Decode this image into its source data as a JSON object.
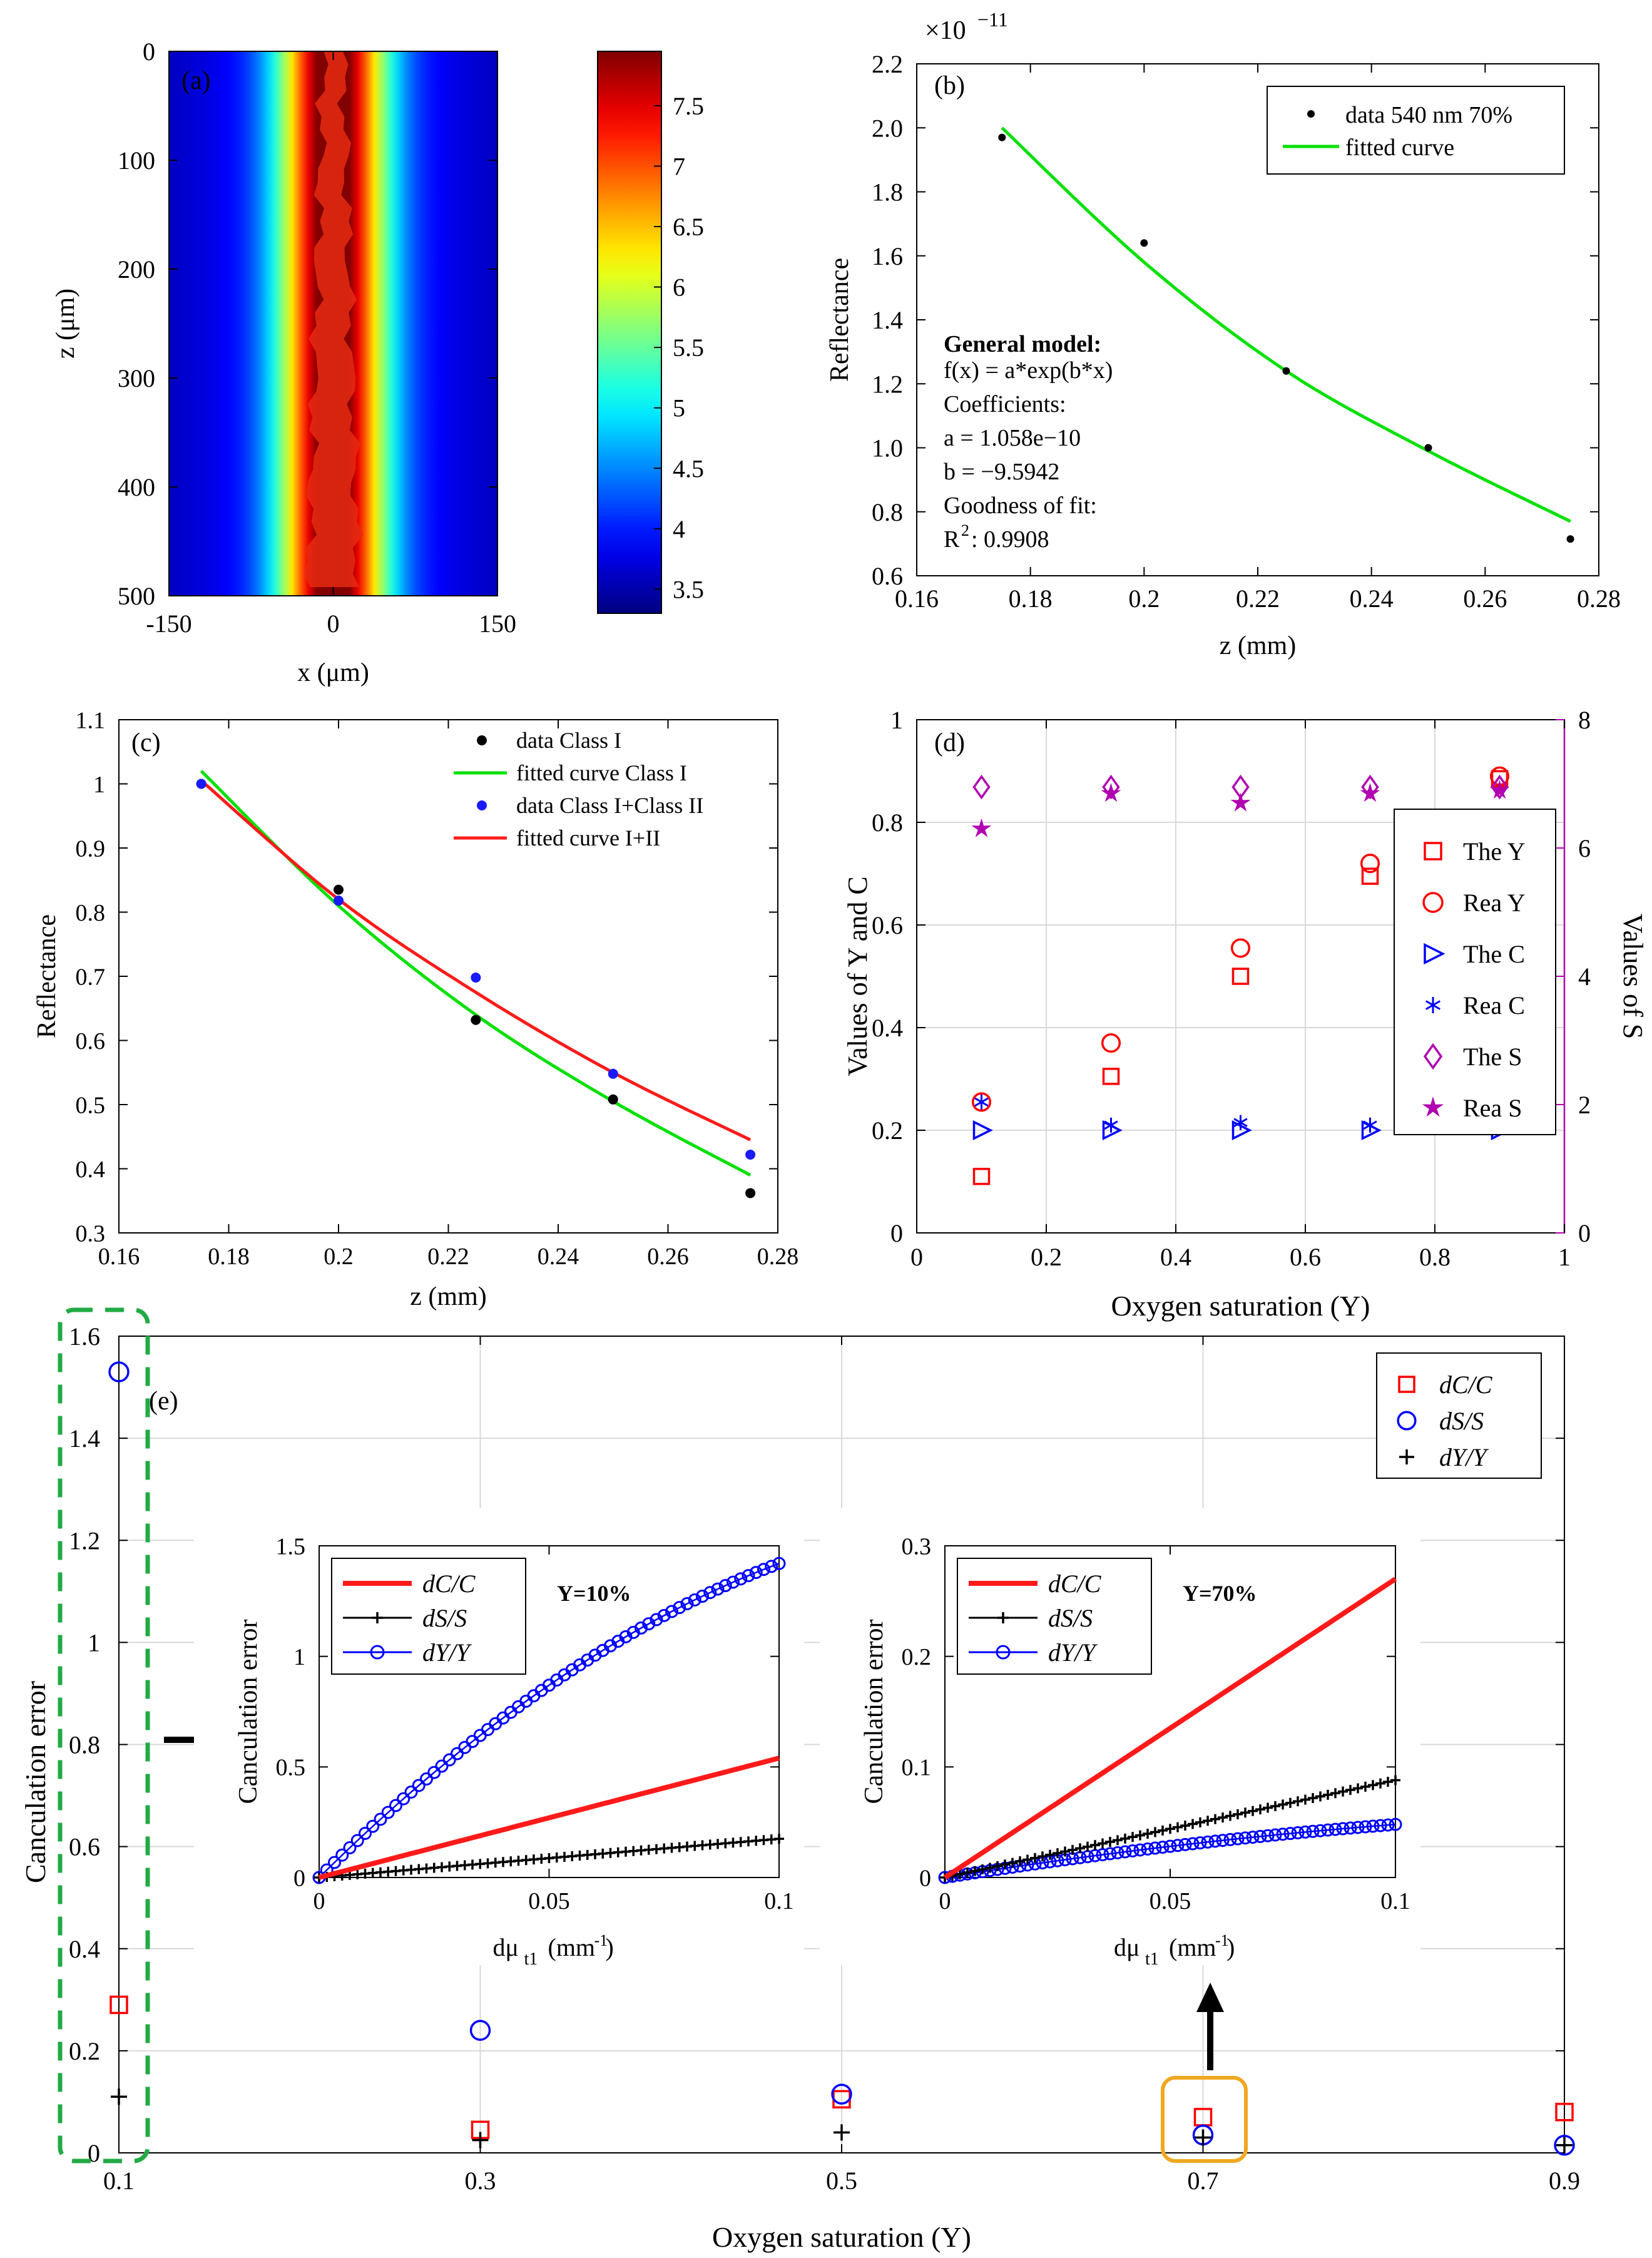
{
  "chart_data": [
    {
      "id": "a",
      "type": "heatmap",
      "panel_label": "(a)",
      "xlabel": "x (μm)",
      "ylabel": "z (μm)",
      "xlim": [
        -150,
        150
      ],
      "ylim": [
        0,
        500
      ],
      "x_ticks": [
        "-150",
        "0",
        "150"
      ],
      "y_ticks": [
        "0",
        "100",
        "200",
        "300",
        "400",
        "500"
      ],
      "colorbar": {
        "min": 3.3,
        "max": 7.95,
        "ticks": [
          "3.5",
          "4",
          "4.5",
          "5",
          "5.5",
          "6",
          "6.5",
          "7",
          "7.5"
        ],
        "tick_values": [
          3.5,
          4,
          4.5,
          5,
          5.5,
          6,
          6.5,
          7,
          7.5
        ]
      },
      "beam_center_x": 0,
      "beam_width_top": 25,
      "beam_width_bottom": 65
    },
    {
      "id": "b",
      "type": "scatter",
      "panel_label": "(b)",
      "xlabel": "z (mm)",
      "ylabel": "Reflectance",
      "exponent_label": "×10",
      "exponent_power": "−11",
      "xlim": [
        0.16,
        0.28
      ],
      "ylim": [
        0.6,
        2.2
      ],
      "x_ticks": [
        "0.16",
        "0.18",
        "0.2",
        "0.22",
        "0.24",
        "0.26",
        "0.28"
      ],
      "x_tick_values": [
        0.16,
        0.18,
        0.2,
        0.22,
        0.24,
        0.26,
        0.28
      ],
      "y_ticks": [
        "0.6",
        "0.8",
        "1.0",
        "1.2",
        "1.4",
        "1.6",
        "1.8",
        "2.0",
        "2.2"
      ],
      "y_tick_values": [
        0.6,
        0.8,
        1.0,
        1.2,
        1.4,
        1.6,
        1.8,
        2.0,
        2.2
      ],
      "series": [
        {
          "name": "data 540 nm 70%",
          "kind": "points",
          "color": "#000000",
          "x": [
            0.175,
            0.2,
            0.225,
            0.25,
            0.275
          ],
          "y": [
            1.97,
            1.64,
            1.24,
            1.0,
            0.715
          ]
        },
        {
          "name": "fitted curve",
          "kind": "line",
          "color": "#00e000",
          "x": [
            0.175,
            0.2,
            0.225,
            0.25,
            0.275
          ],
          "y": [
            2.0,
            1.58,
            1.24,
            0.99,
            0.77
          ]
        }
      ],
      "legend": [
        "data 540 nm 70%",
        "fitted curve"
      ],
      "annotation": [
        "General model:",
        "f(x) = a*exp(b*x)",
        "Coefficients:",
        "a = 1.058e−10",
        "b = −9.5942",
        "Goodness of fit:",
        "R",
        "2",
        ": 0.9908"
      ]
    },
    {
      "id": "c",
      "type": "scatter",
      "panel_label": "(c)",
      "xlabel": "z (mm)",
      "ylabel": "Reflectance",
      "xlim": [
        0.16,
        0.28
      ],
      "ylim": [
        0.3,
        1.1
      ],
      "x_ticks": [
        "0.16",
        "0.18",
        "0.2",
        "0.22",
        "0.24",
        "0.26",
        "0.28"
      ],
      "x_tick_values": [
        0.16,
        0.18,
        0.2,
        0.22,
        0.24,
        0.26,
        0.28
      ],
      "y_ticks": [
        "0.3",
        "0.4",
        "0.5",
        "0.6",
        "0.7",
        "0.8",
        "0.9",
        "1",
        "1.1"
      ],
      "y_tick_values": [
        0.3,
        0.4,
        0.5,
        0.6,
        0.7,
        0.8,
        0.9,
        1.0,
        1.1
      ],
      "series": [
        {
          "name": "data Class I",
          "kind": "points",
          "color": "#000000",
          "x": [
            0.175,
            0.2,
            0.225,
            0.25,
            0.275
          ],
          "y": [
            1.0,
            0.835,
            0.632,
            0.508,
            0.362
          ]
        },
        {
          "name": "fitted curve Class I",
          "kind": "line",
          "color": "#00e000",
          "x": [
            0.175,
            0.2,
            0.225,
            0.25,
            0.275
          ],
          "y": [
            1.02,
            0.81,
            0.64,
            0.505,
            0.39
          ]
        },
        {
          "name": "data Class I+Class II",
          "kind": "points",
          "color": "#1a1aff",
          "x": [
            0.175,
            0.2,
            0.225,
            0.25,
            0.275
          ],
          "y": [
            1.0,
            0.818,
            0.698,
            0.548,
            0.422
          ]
        },
        {
          "name": "fitted curve I+II",
          "kind": "line",
          "color": "#ff1a1a",
          "x": [
            0.175,
            0.2,
            0.225,
            0.25,
            0.275
          ],
          "y": [
            1.005,
            0.82,
            0.675,
            0.55,
            0.445
          ]
        }
      ],
      "legend": [
        "data Class I",
        "fitted curve Class I",
        "data Class I+Class II",
        "fitted curve I+II"
      ]
    },
    {
      "id": "d",
      "type": "scatter",
      "panel_label": "(d)",
      "xlabel": "Oxygen saturation (Y)",
      "ylabel": "Values of Y and C",
      "y2label": "Values of S",
      "xlim": [
        0,
        1
      ],
      "ylim": [
        0,
        1
      ],
      "y2lim": [
        0,
        8
      ],
      "x_ticks": [
        "0",
        "0.2",
        "0.4",
        "0.6",
        "0.8",
        "1"
      ],
      "x_tick_values": [
        0,
        0.2,
        0.4,
        0.6,
        0.8,
        1
      ],
      "y_ticks": [
        "0",
        "0.2",
        "0.4",
        "0.6",
        "0.8",
        "1"
      ],
      "y_tick_values": [
        0,
        0.2,
        0.4,
        0.6,
        0.8,
        1
      ],
      "y2_ticks": [
        "0",
        "2",
        "4",
        "6",
        "8"
      ],
      "y2_tick_values": [
        0,
        2,
        4,
        6,
        8
      ],
      "x": [
        0.1,
        0.3,
        0.5,
        0.7,
        0.9
      ],
      "series": [
        {
          "name": "The Y",
          "marker": "square",
          "color": "#ff0000",
          "axis": "left",
          "y": [
            0.11,
            0.305,
            0.5,
            0.695,
            0.885
          ]
        },
        {
          "name": "Rea Y",
          "marker": "circle",
          "color": "#ff0000",
          "axis": "left",
          "y": [
            0.255,
            0.37,
            0.555,
            0.72,
            0.89
          ]
        },
        {
          "name": "The C",
          "marker": "triangle-right",
          "color": "#0000ff",
          "axis": "left",
          "y": [
            0.2,
            0.2,
            0.2,
            0.2,
            0.2
          ]
        },
        {
          "name": "Rea C",
          "marker": "asterisk",
          "color": "#0000ff",
          "axis": "left",
          "y": [
            0.255,
            0.21,
            0.215,
            0.21,
            0.21
          ]
        },
        {
          "name": "The S",
          "marker": "diamond",
          "color": "#b000b0",
          "axis": "right",
          "y": [
            6.95,
            6.95,
            6.95,
            6.95,
            6.95
          ]
        },
        {
          "name": "Rea  S",
          "marker": "star",
          "color": "#b000b0",
          "axis": "right",
          "y": [
            6.3,
            6.85,
            6.7,
            6.85,
            6.9
          ]
        }
      ],
      "legend": [
        "The Y",
        "Rea Y",
        "The C",
        "Rea C",
        "The S",
        "Rea  S"
      ]
    },
    {
      "id": "e",
      "type": "scatter",
      "panel_label": "(e)",
      "xlabel": "Oxygen saturation (Y)",
      "ylabel": "Canculation error",
      "xlim": [
        0.1,
        0.9
      ],
      "ylim": [
        0,
        1.6
      ],
      "x_ticks": [
        "0.1",
        "0.3",
        "0.5",
        "0.7",
        "0.9"
      ],
      "x_tick_values": [
        0.1,
        0.3,
        0.5,
        0.7,
        0.9
      ],
      "y_ticks": [
        "0",
        "0.2",
        "0.4",
        "0.6",
        "0.8",
        "1",
        "1.2",
        "1.4",
        "1.6"
      ],
      "y_tick_values": [
        0,
        0.2,
        0.4,
        0.6,
        0.8,
        1.0,
        1.2,
        1.4,
        1.6
      ],
      "x": [
        0.1,
        0.3,
        0.5,
        0.7,
        0.9
      ],
      "series": [
        {
          "name": "dC/C",
          "marker": "square",
          "color": "#ff0000",
          "y": [
            0.29,
            0.045,
            0.105,
            0.07,
            0.08
          ]
        },
        {
          "name": "dS/S",
          "marker": "circle",
          "color": "#0000ff",
          "y": [
            1.53,
            0.24,
            0.115,
            0.035,
            0.015
          ]
        },
        {
          "name": "dY/Y",
          "marker": "plus",
          "color": "#000000",
          "y": [
            0.11,
            0.025,
            0.04,
            0.03,
            0.015
          ]
        }
      ],
      "legend": [
        "dC/C",
        "dS/S",
        "dY/Y"
      ]
    },
    {
      "id": "e_inset1",
      "type": "line",
      "title": "Y=10%",
      "xlabel": "dμ",
      "xlabel_sub": "t1",
      "xlabel_unit": "(mm",
      "xlabel_sup": "-1",
      "xlabel_close": ")",
      "ylabel": "Canculation error",
      "xlim": [
        0,
        0.1
      ],
      "ylim": [
        0,
        1.5
      ],
      "x_ticks": [
        "0",
        "0.05",
        "0.1"
      ],
      "x_tick_values": [
        0,
        0.05,
        0.1
      ],
      "y_ticks": [
        "0",
        "0.5",
        "1",
        "1.5"
      ],
      "y_tick_values": [
        0,
        0.5,
        1,
        1.5
      ],
      "dC_slope": 5.4,
      "dS_slope": 1.75,
      "dY_end": 1.42,
      "dY_curvature": 0.45,
      "legend": [
        "dC/C",
        "dS/S",
        "dY/Y"
      ]
    },
    {
      "id": "e_inset2",
      "type": "line",
      "title": "Y=70%",
      "xlabel": "dμ",
      "xlabel_sub": "t1",
      "xlabel_unit": "(mm",
      "xlabel_sup": "-1",
      "xlabel_close": ")",
      "ylabel": "Canculation error",
      "xlim": [
        0,
        0.1
      ],
      "ylim": [
        0,
        0.3
      ],
      "x_ticks": [
        "0",
        "0.05",
        "0.1"
      ],
      "x_tick_values": [
        0,
        0.05,
        0.1
      ],
      "y_ticks": [
        "0",
        "0.1",
        "0.2",
        "0.3"
      ],
      "y_tick_values": [
        0,
        0.1,
        0.2,
        0.3
      ],
      "dC_slope": 2.7,
      "dS_slope": 0.88,
      "dY_end": 0.048,
      "dY_curvature": 0.35,
      "legend": [
        "dC/C",
        "dS/S",
        "dY/Y"
      ]
    }
  ]
}
